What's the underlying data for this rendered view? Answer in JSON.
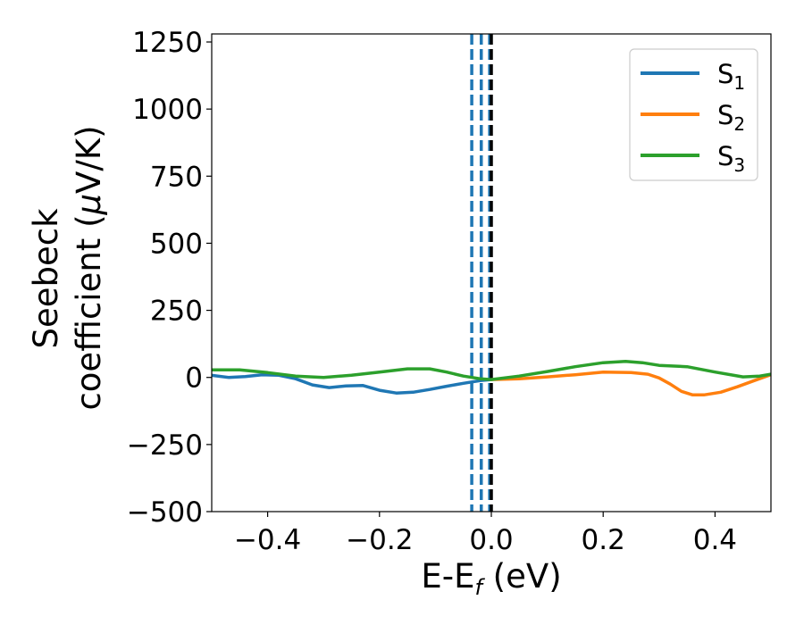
{
  "chart_data": {
    "type": "line",
    "title": "",
    "xlabel": "E-E",
    "xlabel_sub": "f",
    "xlabel_unit": " (eV)",
    "ylabel_line1": "Seebeck",
    "ylabel_line2": "coefficient  (",
    "ylabel_mu": "μ",
    "ylabel_unit": "V/K)",
    "xlim": [
      -0.5,
      0.5
    ],
    "ylim": [
      -500,
      1280
    ],
    "x_ticks": [
      -0.4,
      -0.2,
      0.0,
      0.2,
      0.4
    ],
    "x_tick_labels": [
      "−0.4",
      "−0.2",
      "0.0",
      "0.2",
      "0.4"
    ],
    "y_ticks": [
      -500,
      -250,
      0,
      250,
      500,
      750,
      1000,
      1250
    ],
    "y_tick_labels": [
      "−500",
      "−250",
      "0",
      "250",
      "500",
      "750",
      "1000",
      "1250"
    ],
    "grid": false,
    "legend_position": "top-right",
    "series": [
      {
        "name": "S",
        "name_sub": "1",
        "color": "#1f77b4",
        "x": [
          -0.5,
          -0.47,
          -0.44,
          -0.41,
          -0.38,
          -0.35,
          -0.32,
          -0.29,
          -0.26,
          -0.23,
          -0.2,
          -0.17,
          -0.14,
          -0.11,
          -0.08,
          -0.05,
          -0.02,
          0.0
        ],
        "y": [
          8,
          0,
          3,
          10,
          8,
          -5,
          -28,
          -38,
          -32,
          -30,
          -48,
          -58,
          -55,
          -45,
          -33,
          -22,
          -12,
          -8
        ]
      },
      {
        "name": "S",
        "name_sub": "2",
        "color": "#ff7f0e",
        "x": [
          0.0,
          0.05,
          0.1,
          0.15,
          0.2,
          0.25,
          0.28,
          0.3,
          0.32,
          0.34,
          0.36,
          0.38,
          0.41,
          0.44,
          0.47,
          0.5
        ],
        "y": [
          -8,
          -5,
          2,
          10,
          20,
          18,
          12,
          -2,
          -25,
          -52,
          -65,
          -65,
          -55,
          -35,
          -12,
          10
        ]
      },
      {
        "name": "S",
        "name_sub": "3",
        "color": "#2ca02c",
        "x": [
          -0.5,
          -0.45,
          -0.4,
          -0.35,
          -0.3,
          -0.25,
          -0.2,
          -0.15,
          -0.11,
          -0.08,
          -0.05,
          -0.02,
          0.0,
          0.05,
          0.1,
          0.15,
          0.2,
          0.24,
          0.27,
          0.3,
          0.35,
          0.4,
          0.45,
          0.48,
          0.5
        ],
        "y": [
          28,
          28,
          18,
          5,
          0,
          8,
          20,
          32,
          32,
          20,
          5,
          -5,
          -8,
          5,
          22,
          40,
          55,
          60,
          55,
          45,
          40,
          20,
          2,
          5,
          12
        ]
      }
    ],
    "vertical_lines": [
      {
        "x": -0.035,
        "color": "#1f77b4",
        "style": "dashed"
      },
      {
        "x": -0.018,
        "color": "#1f77b4",
        "style": "dashed"
      },
      {
        "x": -0.003,
        "color": "#1f77b4",
        "style": "dashed"
      },
      {
        "x": 0.0,
        "color": "#000000",
        "style": "dashed"
      }
    ]
  }
}
